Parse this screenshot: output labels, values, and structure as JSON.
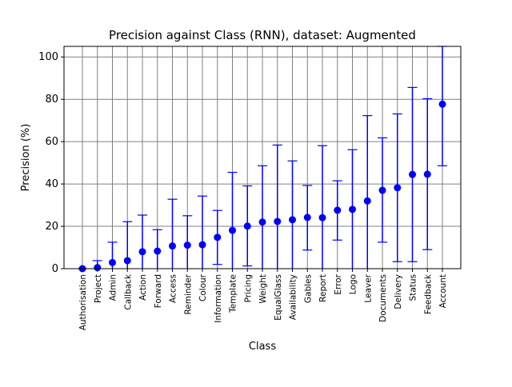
{
  "chart_data": {
    "type": "scatter",
    "title": "Precision against Class (RNN), dataset: Augmented",
    "xlabel": "Class",
    "ylabel": "Precision (%)",
    "ylim": [
      0,
      105
    ],
    "yticks": [
      0,
      20,
      40,
      60,
      80,
      100
    ],
    "grid": true,
    "categories": [
      "Authorisation",
      "Project",
      "Admin",
      "Callback",
      "Action",
      "Forward",
      "Access",
      "Reminder",
      "Colour",
      "Information",
      "Template",
      "Pricing",
      "Weight",
      "EqualGlass",
      "Availability",
      "Gables",
      "Report",
      "Error",
      "Logo",
      "Leaver",
      "Documents",
      "Delivery",
      "Status",
      "Feedback",
      "Account"
    ],
    "values": [
      0,
      0.5,
      2.9,
      3.8,
      8,
      8.3,
      10.7,
      11.1,
      11.3,
      14.8,
      18.1,
      20.1,
      22,
      22.3,
      23.1,
      24.2,
      24.1,
      27.6,
      28,
      32,
      37,
      38.2,
      44.5,
      44.6,
      77.7
    ],
    "err_low": [
      0,
      0,
      0,
      0,
      0,
      0,
      0,
      0,
      0,
      2,
      0,
      1.3,
      0,
      0,
      0,
      8.8,
      0,
      13.5,
      0,
      0,
      12.5,
      3.3,
      3.3,
      9,
      48.6
    ],
    "err_high": [
      0,
      3.8,
      12.5,
      22.2,
      25.3,
      18.4,
      32.8,
      25,
      34.3,
      27.5,
      45.5,
      39.1,
      48.6,
      58.4,
      50.9,
      39.3,
      58.1,
      41.5,
      56.2,
      72.3,
      61.8,
      73.1,
      85.6,
      80.3,
      105
    ],
    "color": "#0000ff"
  }
}
